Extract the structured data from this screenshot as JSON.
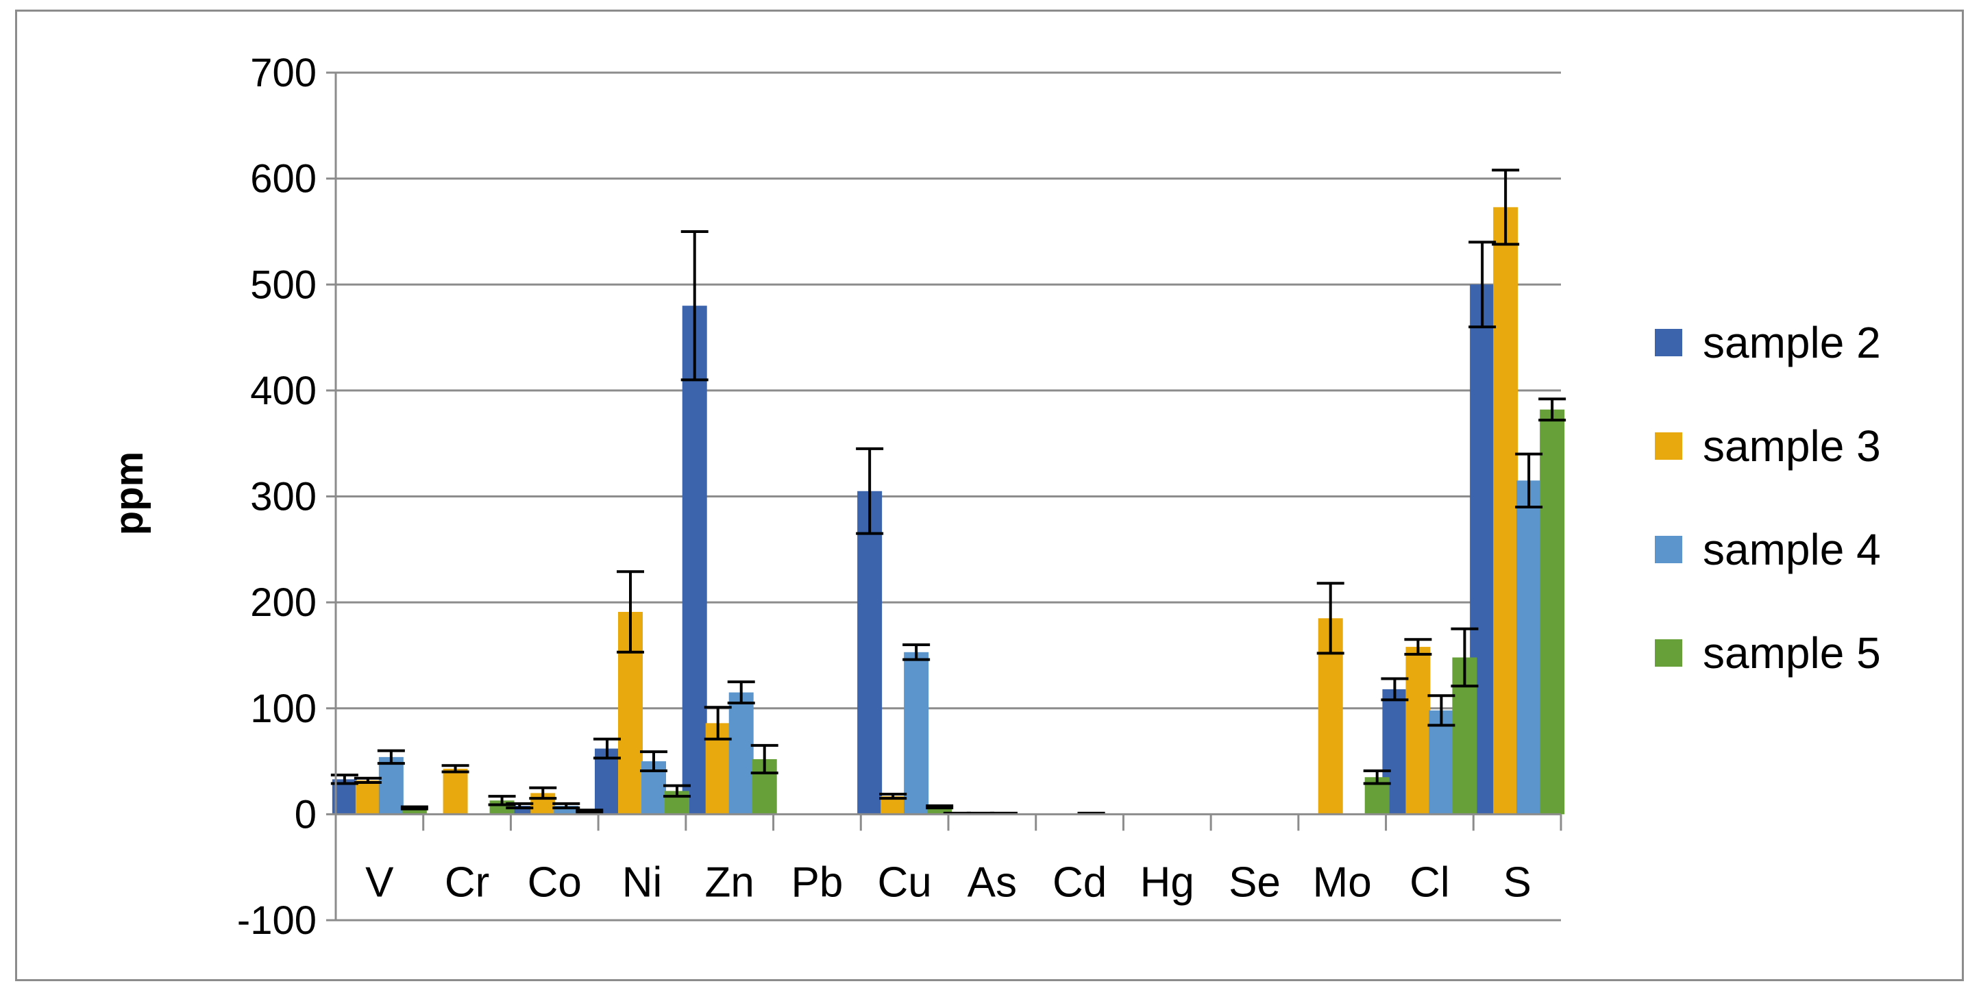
{
  "chart_data": {
    "type": "bar",
    "title": "",
    "xlabel": "",
    "ylabel": "ppm",
    "ylim": [
      -100,
      700
    ],
    "yticks": [
      -100,
      0,
      100,
      200,
      300,
      400,
      500,
      600,
      700
    ],
    "grid": true,
    "legend_position": "right",
    "categories": [
      "V",
      "Cr",
      "Co",
      "Ni",
      "Zn",
      "Pb",
      "Cu",
      "As",
      "Cd",
      "Hg",
      "Se",
      "Mo",
      "Cl",
      "S"
    ],
    "series": [
      {
        "name": "sample 2",
        "color": "#3b64ad",
        "values": [
          33,
          0,
          8,
          62,
          480,
          0,
          305,
          1,
          0,
          0,
          0,
          0,
          118,
          500
        ],
        "errors": [
          4,
          0,
          2,
          9,
          70,
          0,
          40,
          0,
          0,
          0,
          0,
          0,
          10,
          40
        ]
      },
      {
        "name": "sample 3",
        "color": "#e8a90e",
        "values": [
          32,
          43,
          20,
          191,
          86,
          0,
          17,
          1,
          0,
          0,
          0,
          185,
          158,
          573
        ],
        "errors": [
          2,
          3,
          5,
          38,
          15,
          0,
          2,
          0,
          0,
          0,
          0,
          33,
          7,
          35
        ]
      },
      {
        "name": "sample 4",
        "color": "#5b95cc",
        "values": [
          54,
          0,
          8,
          50,
          115,
          0,
          153,
          1,
          1,
          0,
          0,
          0,
          98,
          315
        ],
        "errors": [
          6,
          0,
          2,
          9,
          10,
          0,
          7,
          0,
          0,
          0,
          0,
          0,
          14,
          25
        ]
      },
      {
        "name": "sample 5",
        "color": "#67a039",
        "values": [
          6,
          13,
          3,
          22,
          52,
          0,
          7,
          0,
          0,
          0,
          0,
          35,
          148,
          382
        ],
        "errors": [
          1,
          4,
          1,
          5,
          13,
          0,
          1,
          0,
          0,
          0,
          0,
          6,
          27,
          10
        ]
      }
    ]
  }
}
